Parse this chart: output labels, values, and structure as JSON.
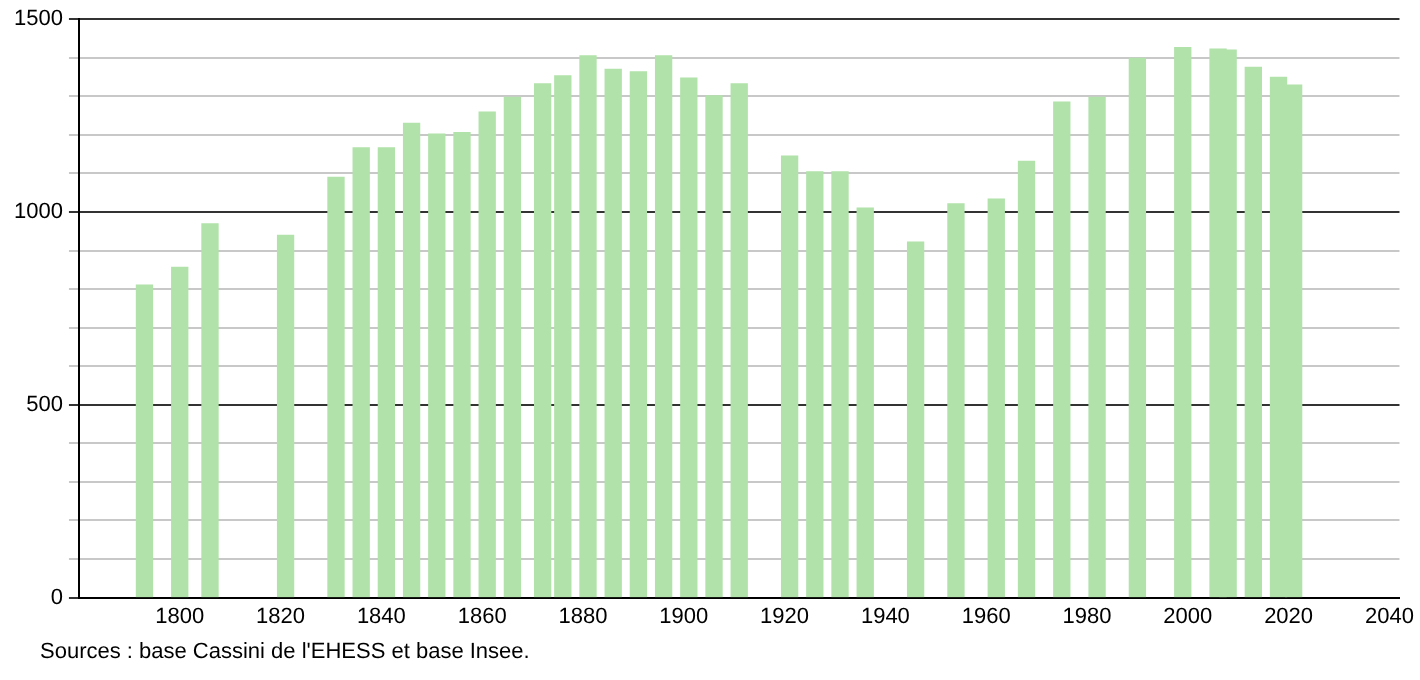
{
  "chart_data": {
    "type": "bar",
    "x": [
      1793,
      1800,
      1806,
      1821,
      1831,
      1836,
      1841,
      1846,
      1851,
      1856,
      1861,
      1866,
      1872,
      1876,
      1881,
      1886,
      1891,
      1896,
      1901,
      1906,
      1911,
      1921,
      1926,
      1931,
      1936,
      1946,
      1954,
      1962,
      1968,
      1975,
      1982,
      1990,
      1999,
      2006,
      2008,
      2013,
      2018,
      2021
    ],
    "values": [
      810,
      856,
      969,
      939,
      1090,
      1166,
      1166,
      1230,
      1202,
      1206,
      1259,
      1297,
      1332,
      1353,
      1405,
      1370,
      1363,
      1405,
      1347,
      1301,
      1332,
      1145,
      1104,
      1104,
      1010,
      922,
      1021,
      1033,
      1131,
      1285,
      1297,
      1398,
      1426,
      1422,
      1420,
      1375,
      1349,
      1329
    ],
    "color": "#b0e2aa",
    "xlim": [
      1780,
      2042
    ],
    "xticks": [
      1800,
      1820,
      1840,
      1860,
      1880,
      1900,
      1920,
      1940,
      1960,
      1980,
      2000,
      2020,
      2040
    ],
    "ylim": [
      0,
      1500
    ],
    "yticks": [
      0,
      {
        "value": 100,
        "label": null
      },
      {
        "value": 200,
        "label": null
      },
      {
        "value": 300,
        "label": null
      },
      {
        "value": 400,
        "label": null
      },
      500,
      {
        "value": 600,
        "label": null
      },
      {
        "value": 700,
        "label": null
      },
      {
        "value": 800,
        "label": null
      },
      {
        "value": 900,
        "label": null
      },
      1000,
      {
        "value": 1100,
        "label": null
      },
      {
        "value": 1200,
        "label": null
      },
      {
        "value": 1300,
        "label": null
      },
      {
        "value": 1400,
        "label": null
      },
      1500
    ],
    "grid": "y",
    "legend": false,
    "annotations": [
      "Sources : base Cassini de l'EHESS et base Insee."
    ]
  }
}
